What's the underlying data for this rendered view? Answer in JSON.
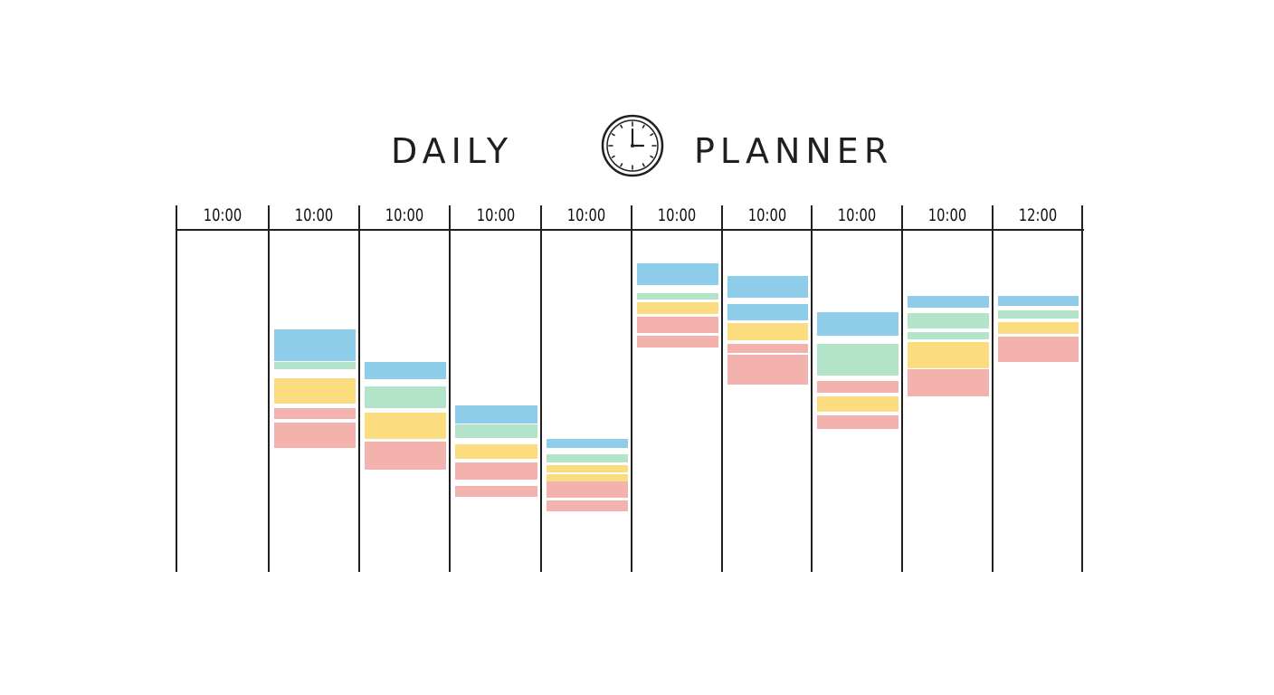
{
  "header": {
    "title_left": "DAILY",
    "title_right": "PLANNER",
    "icon": "clock-icon"
  },
  "colors": {
    "blue": "#8ecdea",
    "green": "#b3e3c9",
    "yellow": "#fbdd7f",
    "red": "#f4b2ae",
    "line": "#1f1f1f"
  },
  "columns": [
    {
      "time": "10:00",
      "blocks": []
    },
    {
      "time": "10:00",
      "blocks": [
        "blue",
        "green",
        "yellow",
        "red",
        "red"
      ]
    },
    {
      "time": "10:00",
      "blocks": [
        "blue",
        "green",
        "yellow",
        "red"
      ]
    },
    {
      "time": "10:00",
      "blocks": [
        "blue",
        "green",
        "yellow",
        "red",
        "red"
      ]
    },
    {
      "time": "10:00",
      "blocks": [
        "blue",
        "green",
        "yellow",
        "yellow",
        "red",
        "red"
      ]
    },
    {
      "time": "10:00",
      "blocks": [
        "blue",
        "green",
        "yellow",
        "red",
        "red"
      ]
    },
    {
      "time": "10:00",
      "blocks": [
        "blue",
        "blue",
        "yellow",
        "red",
        "red"
      ]
    },
    {
      "time": "10:00",
      "blocks": [
        "blue",
        "green",
        "red",
        "yellow",
        "red"
      ]
    },
    {
      "time": "10:00",
      "blocks": [
        "blue",
        "green",
        "green",
        "yellow",
        "red",
        "red"
      ]
    },
    {
      "time": "12:00",
      "blocks": [
        "blue",
        "green",
        "yellow",
        "red"
      ]
    }
  ]
}
